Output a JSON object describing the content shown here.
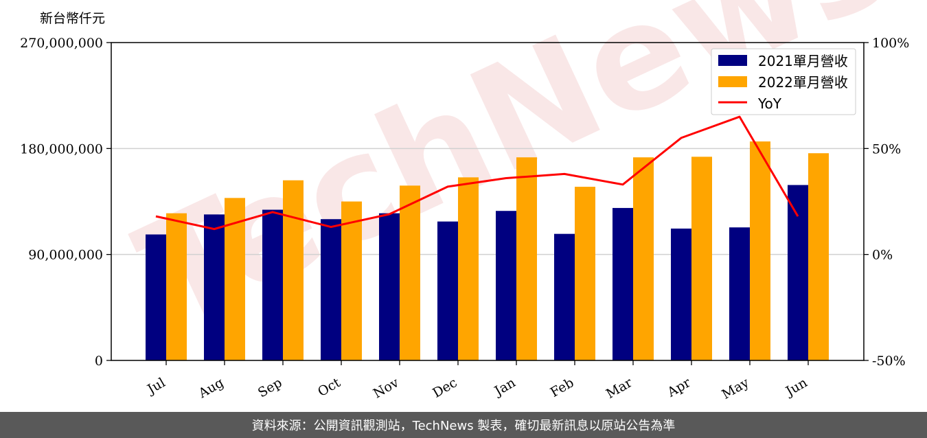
{
  "chart_data": {
    "type": "bar",
    "unit_label": "新台幣仟元",
    "categories": [
      "Jul",
      "Aug",
      "Sep",
      "Oct",
      "Nov",
      "Dec",
      "Jan",
      "Feb",
      "Mar",
      "Apr",
      "May",
      "Jun"
    ],
    "series": [
      {
        "name": "2021單月營收",
        "type": "bar",
        "color": "#000080",
        "values": [
          107000000,
          124000000,
          128000000,
          120000000,
          125000000,
          118000000,
          127000000,
          107500000,
          129500000,
          112000000,
          113000000,
          149000000
        ]
      },
      {
        "name": "2022單月營收",
        "type": "bar",
        "color": "#FFA500",
        "values": [
          125000000,
          138000000,
          153000000,
          135000000,
          148500000,
          155500000,
          172500000,
          147500000,
          172500000,
          173000000,
          186000000,
          176000000
        ]
      },
      {
        "name": "YoY",
        "type": "line",
        "axis": "right",
        "color": "#FF0000",
        "values": [
          18,
          12,
          20,
          13,
          19,
          32,
          36,
          38,
          33,
          55,
          65,
          18
        ]
      }
    ],
    "left_axis": {
      "ylim": [
        0,
        270000000
      ],
      "ticks": [
        0,
        90000000,
        180000000,
        270000000
      ],
      "tick_labels": [
        "0",
        "90,000,000",
        "180,000,000",
        "270,000,000"
      ]
    },
    "right_axis": {
      "ylim": [
        -50,
        100
      ],
      "ticks": [
        -50,
        0,
        50,
        100
      ],
      "tick_labels": [
        "-50%",
        "0%",
        "50%",
        "100%"
      ]
    },
    "grid": "horizontal",
    "legend_position": "top-right"
  },
  "watermark": "TechNews",
  "footer": {
    "text": "資料來源：公開資訊觀測站，TechNews 製表，確切最新訊息以原站公告為準"
  }
}
